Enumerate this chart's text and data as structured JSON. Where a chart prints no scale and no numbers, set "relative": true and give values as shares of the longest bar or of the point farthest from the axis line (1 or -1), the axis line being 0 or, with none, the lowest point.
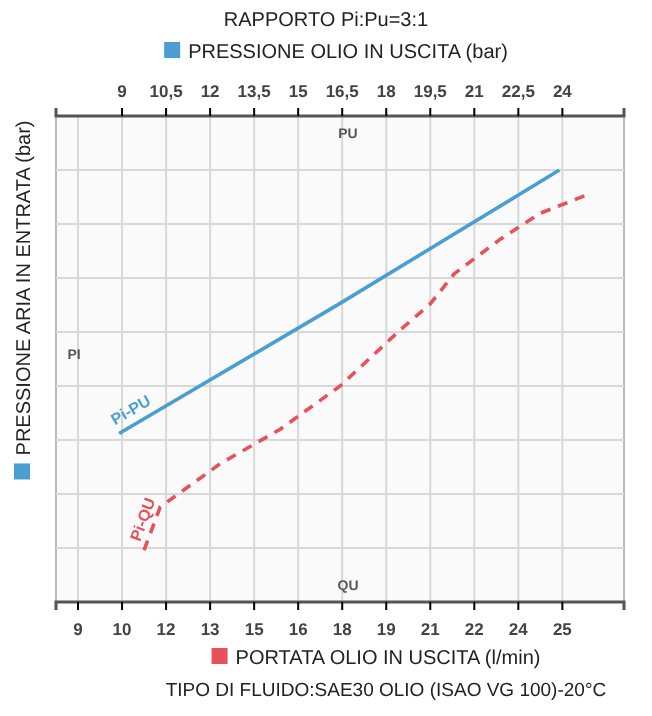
{
  "chart_data": {
    "type": "line",
    "title": "RAPPORTO Pi:Pu=3:1",
    "x2label": "PRESSIONE OLIO IN USCITA (bar)",
    "xlabel": "PORTATA OLIO IN USCITA (l/min)",
    "ylabel": "PRESSIONE ARIA IN ENTRATA (bar)",
    "annotations": [
      "PU",
      "QU",
      "PI",
      "TIPO DI FLUIDO:SAE30 OLIO (ISAO VG 100)-20°C"
    ],
    "relative": true,
    "grid": true,
    "marker": "none",
    "xlim": [
      8.25,
      27.6
    ],
    "xticks": [
      9,
      {
        "value": 10.5,
        "label": "10"
      },
      12,
      {
        "value": 13.5,
        "label": "13"
      },
      15,
      {
        "value": 16.5,
        "label": "16"
      },
      18,
      {
        "value": 19.5,
        "label": "19"
      },
      21,
      {
        "value": 22.5,
        "label": "22"
      },
      24,
      {
        "value": 25.5,
        "label": "25"
      }
    ],
    "x2lim": [
      6.75,
      26.1
    ],
    "x2ticks": [
      9,
      {
        "value": 10.5,
        "label": "10,5"
      },
      12,
      {
        "value": 13.5,
        "label": "13,5"
      },
      15,
      {
        "value": 16.5,
        "label": "16,5"
      },
      18,
      {
        "value": 19.5,
        "label": "19,5"
      },
      21,
      {
        "value": 22.5,
        "label": "22,5"
      },
      24
    ],
    "series": [
      {
        "name": "Pi-PU",
        "color": "#4a9fd0",
        "axis": "x2",
        "line_style": "solid",
        "x": [
          8.9,
          16.4,
          23.9
        ],
        "values": [
          0.39,
          0.69,
          1
        ]
      },
      {
        "name": "Pi-QU",
        "color": "#e8505a",
        "line_style": "dashed",
        "x": [
          11.25,
          11.8,
          13.84,
          15.89,
          17.93,
          19.98,
          21.0,
          21.82,
          23.39,
          24.75,
          26.25
        ],
        "values": [
          0.12,
          0.22,
          0.32,
          0.4,
          0.5,
          0.63,
          0.69,
          0.76,
          0.84,
          0.9,
          0.94
        ]
      }
    ]
  }
}
